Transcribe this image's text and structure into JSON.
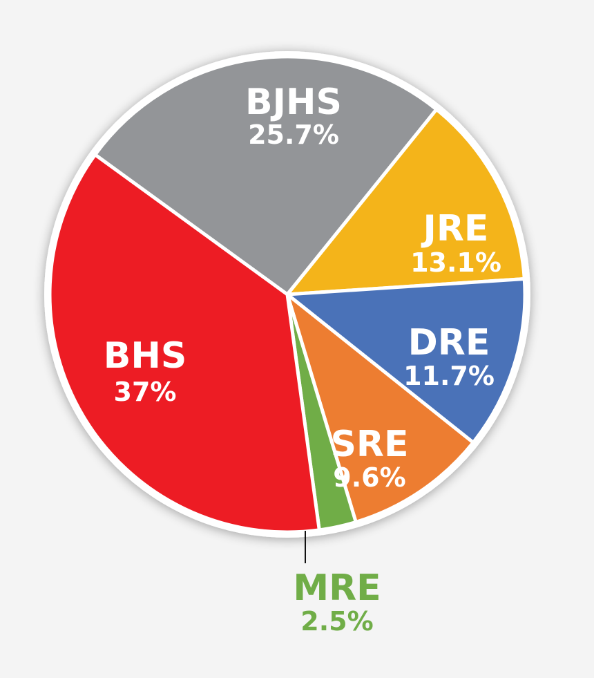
{
  "chart_data": {
    "type": "pie",
    "slices": [
      {
        "label": "BJHS",
        "value": 25.7,
        "value_label": "25.7%",
        "color": "#939598"
      },
      {
        "label": "JRE",
        "value": 13.1,
        "value_label": "13.1%",
        "color": "#f4b41a"
      },
      {
        "label": "DRE",
        "value": 11.7,
        "value_label": "11.7%",
        "color": "#4a72b8"
      },
      {
        "label": "SRE",
        "value": 9.6,
        "value_label": "9.6%",
        "color": "#ed7d31"
      },
      {
        "label": "MRE",
        "value": 2.5,
        "value_label": "2.5%",
        "color": "#70ad47"
      },
      {
        "label": "BHS",
        "value": 37,
        "value_label": "37%",
        "color": "#ed1c24"
      }
    ],
    "legend": "none",
    "labels_position": "inside, MRE outside with leader line"
  }
}
